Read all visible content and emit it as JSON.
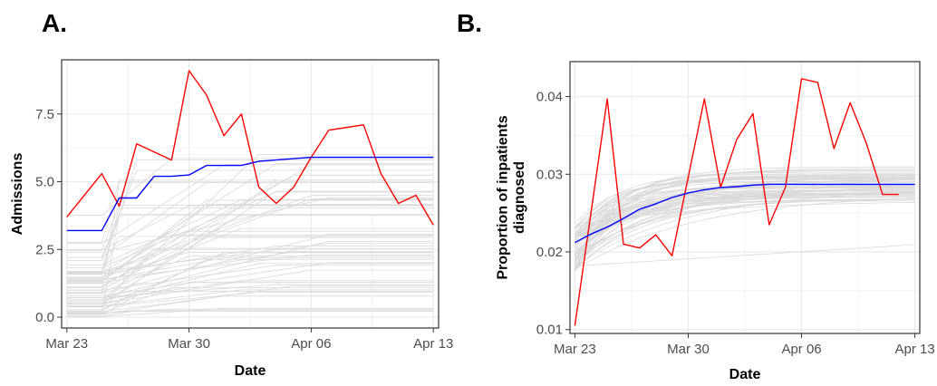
{
  "chart_data": [
    {
      "panel_label": "A.",
      "type": "line",
      "xlabel": "Date",
      "ylabel": "Admissions",
      "x_ticks": [
        "Mar 23",
        "Mar 30",
        "Apr 06",
        "Apr 13"
      ],
      "y_ticks": [
        "0.0",
        "2.5",
        "5.0",
        "7.5"
      ],
      "xlim": [
        -0.3,
        21.3
      ],
      "ylim": [
        -0.4,
        9.5
      ],
      "grid": true,
      "series": [
        {
          "color": "#ff0000",
          "x": [
            0,
            2,
            3,
            4,
            6,
            7,
            8,
            9,
            10,
            11,
            12,
            13,
            14,
            15,
            17,
            18,
            19,
            20,
            21
          ],
          "y": [
            3.7,
            5.3,
            4.1,
            6.4,
            5.8,
            9.1,
            8.2,
            6.7,
            7.5,
            4.8,
            4.2,
            4.8,
            5.9,
            6.9,
            7.1,
            5.3,
            4.2,
            4.5,
            3.4
          ]
        },
        {
          "color": "#0000ff",
          "x": [
            0,
            1,
            2,
            3,
            4,
            5,
            6,
            7,
            8,
            9,
            10,
            11,
            12,
            13,
            14,
            15,
            16,
            17,
            18,
            19,
            20,
            21
          ],
          "y": [
            3.2,
            3.2,
            3.2,
            4.4,
            4.4,
            5.2,
            5.2,
            5.25,
            5.6,
            5.6,
            5.6,
            5.75,
            5.8,
            5.85,
            5.9,
            5.9,
            5.9,
            5.9,
            5.9,
            5.9,
            5.9,
            5.9
          ]
        }
      ],
      "background_lines": {
        "color": "#d9d9d9",
        "count": 60
      }
    },
    {
      "panel_label": "B.",
      "type": "line",
      "xlabel": "Date",
      "ylabel": "Proportion of inpatients diagnosed",
      "x_ticks": [
        "Mar 23",
        "Mar 30",
        "Apr 06",
        "Apr 13"
      ],
      "y_ticks": [
        "0.01",
        "0.02",
        "0.03",
        "0.04"
      ],
      "xlim": [
        -0.3,
        21.3
      ],
      "ylim": [
        0.0095,
        0.0445
      ],
      "grid": true,
      "series": [
        {
          "color": "#ff0000",
          "x": [
            0,
            2,
            3,
            4,
            5,
            6,
            8,
            9,
            10,
            11,
            12,
            13,
            14,
            15,
            16,
            17,
            18,
            19,
            20
          ],
          "y": [
            0.0105,
            0.0397,
            0.021,
            0.0205,
            0.0222,
            0.0195,
            0.0397,
            0.0283,
            0.0345,
            0.0378,
            0.0235,
            0.0283,
            0.0423,
            0.0418,
            0.0333,
            0.0392,
            0.034,
            0.0274,
            0.0274
          ]
        },
        {
          "color": "#0000ff",
          "x": [
            0,
            1,
            2,
            3,
            4,
            5,
            6,
            7,
            8,
            9,
            10,
            11,
            12,
            13,
            14,
            15,
            16,
            17,
            18,
            19,
            20,
            21
          ],
          "y": [
            0.0212,
            0.0223,
            0.0232,
            0.0243,
            0.0255,
            0.0262,
            0.027,
            0.0276,
            0.028,
            0.0283,
            0.0284,
            0.0286,
            0.0287,
            0.0287,
            0.0287,
            0.0287,
            0.0287,
            0.0287,
            0.0287,
            0.0287,
            0.0287,
            0.0287
          ]
        }
      ],
      "background_lines": {
        "color": "#d9d9d9",
        "count": 60
      }
    }
  ]
}
